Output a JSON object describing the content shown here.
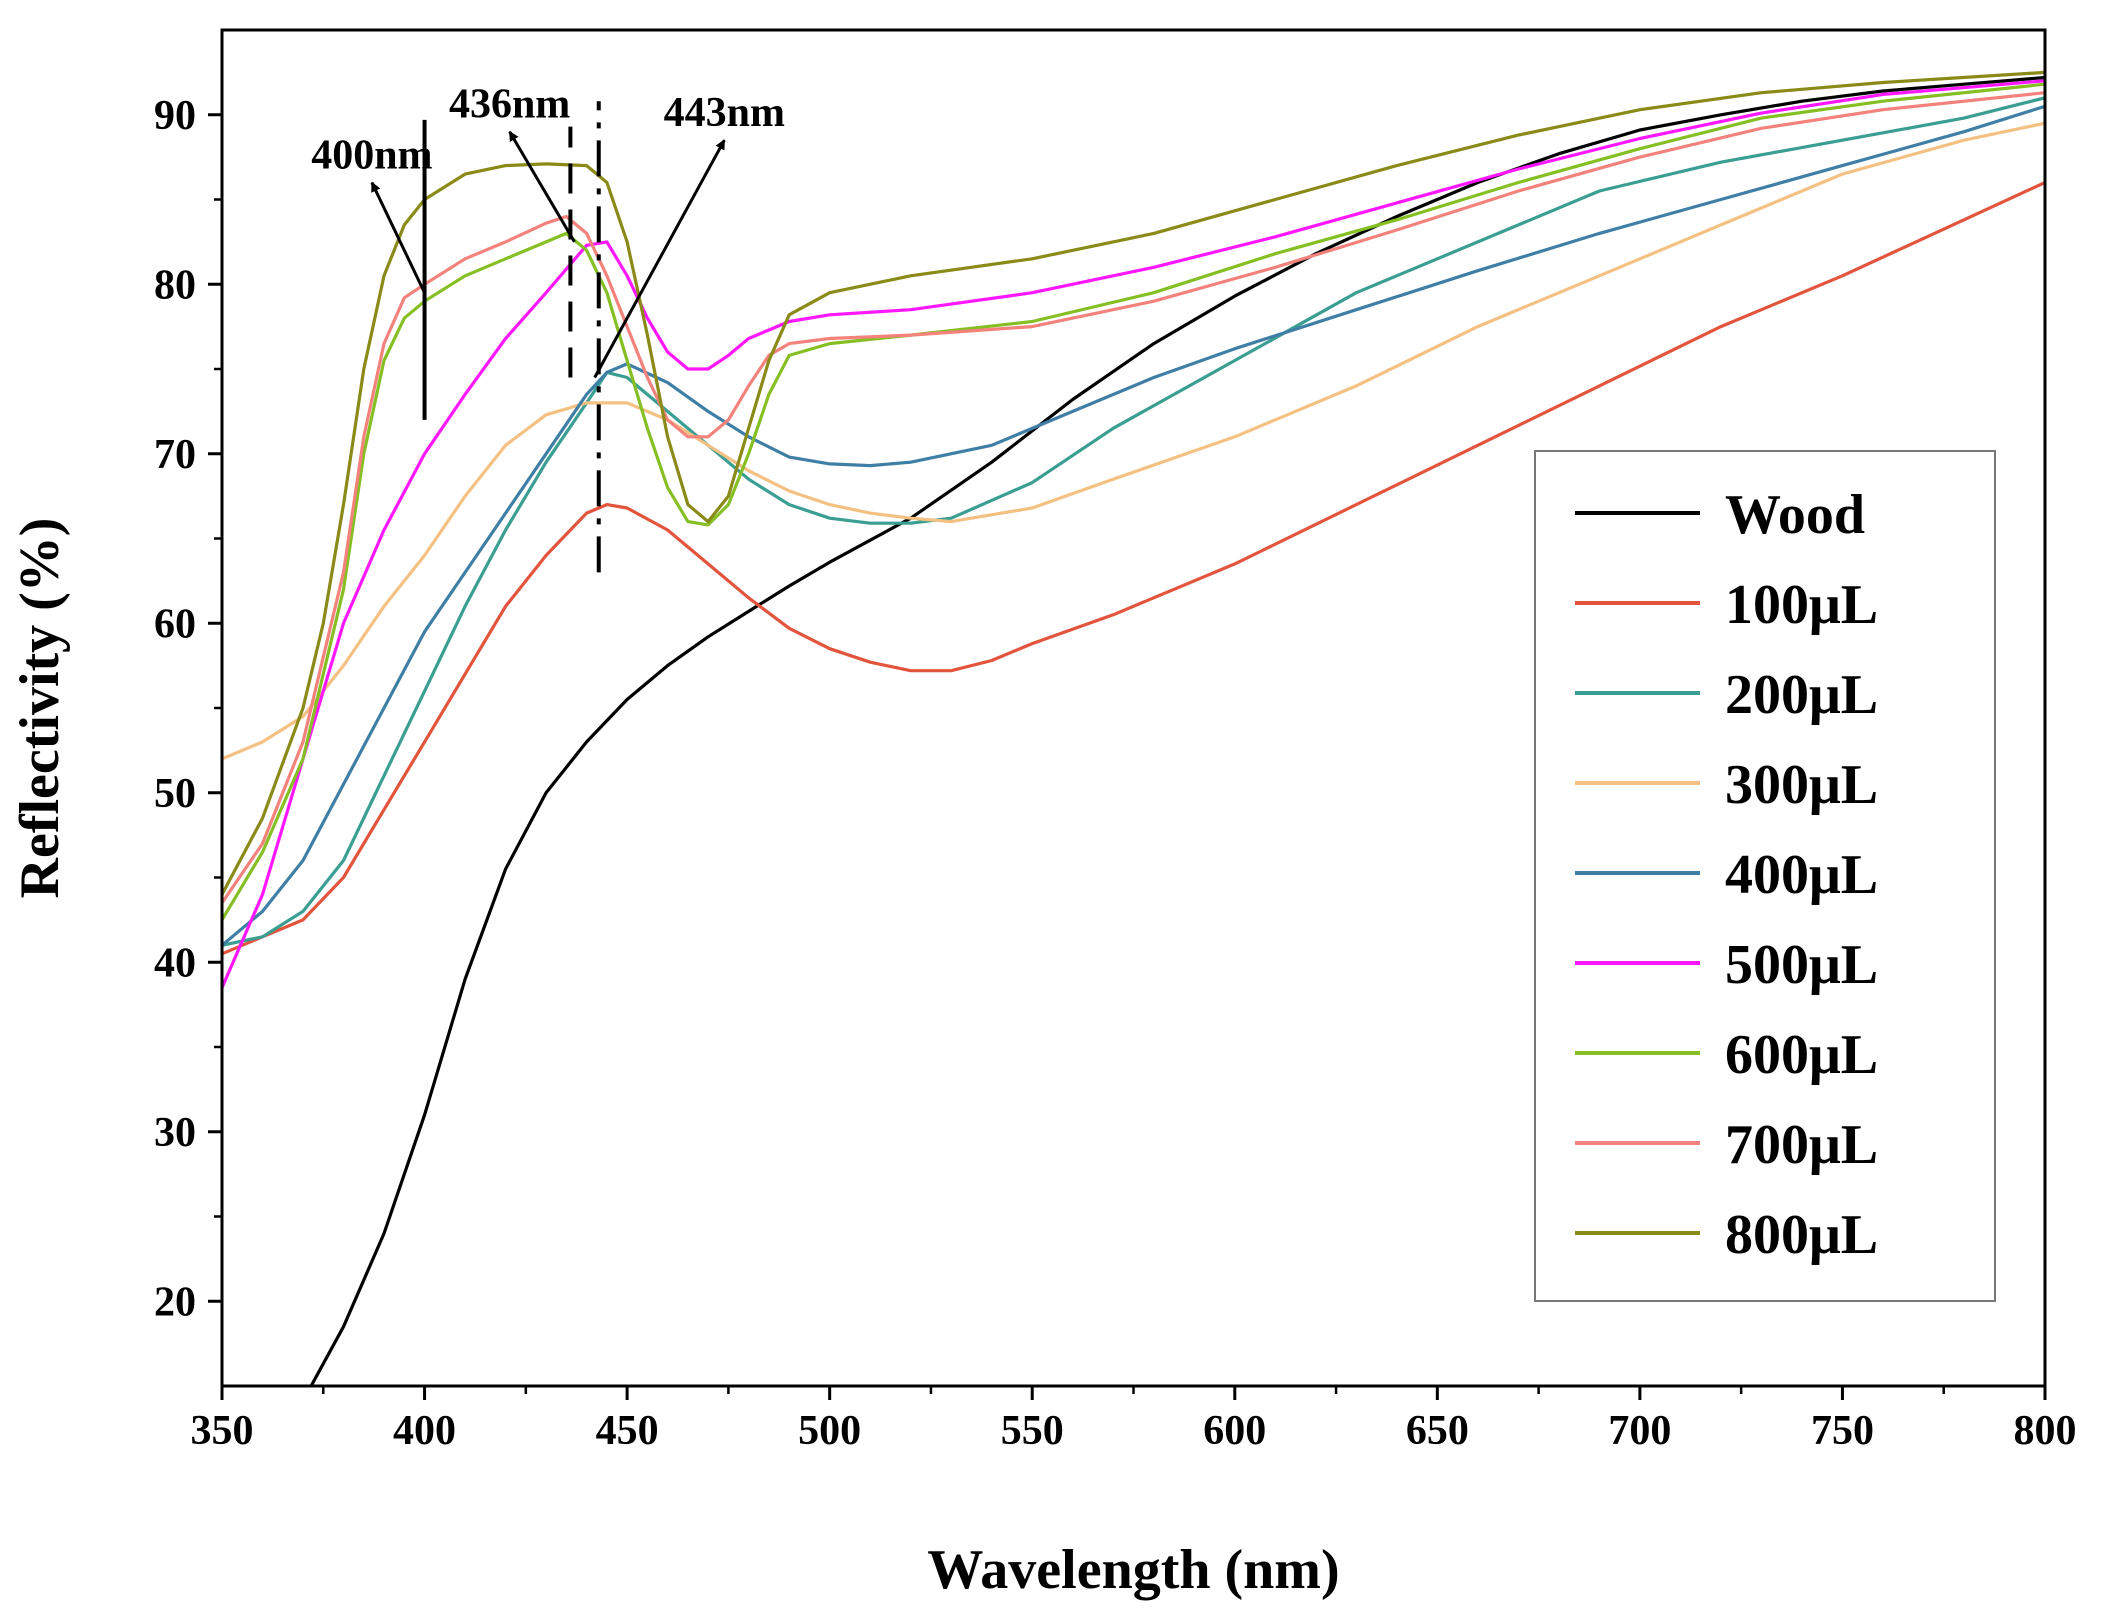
{
  "chart_data": {
    "type": "line",
    "xlabel": "Wavelength (nm)",
    "ylabel": "Reflectivity (%)",
    "xlim": [
      350,
      800
    ],
    "ylim": [
      15,
      95
    ],
    "x_ticks": [
      350,
      400,
      450,
      500,
      550,
      600,
      650,
      700,
      750,
      800
    ],
    "y_ticks": [
      20,
      30,
      40,
      50,
      60,
      70,
      80,
      90
    ],
    "grid": false,
    "legend_position": "bottom-right",
    "series": [
      {
        "name": "Wood",
        "color": "#000000",
        "points": [
          [
            372,
            15
          ],
          [
            380,
            18.5
          ],
          [
            390,
            24
          ],
          [
            400,
            31
          ],
          [
            410,
            39
          ],
          [
            420,
            45.5
          ],
          [
            430,
            50
          ],
          [
            440,
            53
          ],
          [
            450,
            55.5
          ],
          [
            460,
            57.5
          ],
          [
            470,
            59.2
          ],
          [
            480,
            60.7
          ],
          [
            490,
            62.2
          ],
          [
            500,
            63.6
          ],
          [
            520,
            66.2
          ],
          [
            540,
            69.5
          ],
          [
            560,
            73.2
          ],
          [
            580,
            76.5
          ],
          [
            600,
            79.3
          ],
          [
            620,
            81.8
          ],
          [
            640,
            84
          ],
          [
            660,
            86
          ],
          [
            680,
            87.7
          ],
          [
            700,
            89.1
          ],
          [
            720,
            90
          ],
          [
            740,
            90.8
          ],
          [
            760,
            91.4
          ],
          [
            780,
            91.8
          ],
          [
            800,
            92.2
          ]
        ]
      },
      {
        "name": "100μL",
        "color": "#e2543c",
        "points": [
          [
            350,
            40.5
          ],
          [
            360,
            41.5
          ],
          [
            370,
            42.5
          ],
          [
            380,
            45
          ],
          [
            390,
            49
          ],
          [
            400,
            53
          ],
          [
            410,
            57
          ],
          [
            420,
            61
          ],
          [
            430,
            64
          ],
          [
            440,
            66.5
          ],
          [
            445,
            67
          ],
          [
            450,
            66.8
          ],
          [
            460,
            65.5
          ],
          [
            470,
            63.5
          ],
          [
            480,
            61.5
          ],
          [
            490,
            59.7
          ],
          [
            500,
            58.5
          ],
          [
            510,
            57.7
          ],
          [
            520,
            57.2
          ],
          [
            530,
            57.2
          ],
          [
            540,
            57.8
          ],
          [
            550,
            58.8
          ],
          [
            570,
            60.5
          ],
          [
            600,
            63.5
          ],
          [
            630,
            67
          ],
          [
            660,
            70.5
          ],
          [
            690,
            74
          ],
          [
            720,
            77.5
          ],
          [
            750,
            80.5
          ],
          [
            780,
            83.8
          ],
          [
            800,
            86
          ]
        ]
      },
      {
        "name": "200μL",
        "color": "#3a9e92",
        "points": [
          [
            350,
            41
          ],
          [
            360,
            41.5
          ],
          [
            370,
            43
          ],
          [
            380,
            46
          ],
          [
            390,
            51
          ],
          [
            400,
            56
          ],
          [
            410,
            61
          ],
          [
            420,
            65.5
          ],
          [
            430,
            69.5
          ],
          [
            440,
            73
          ],
          [
            445,
            74.8
          ],
          [
            450,
            74.5
          ],
          [
            460,
            72.5
          ],
          [
            470,
            70.5
          ],
          [
            480,
            68.5
          ],
          [
            490,
            67
          ],
          [
            500,
            66.2
          ],
          [
            510,
            65.9
          ],
          [
            520,
            65.9
          ],
          [
            530,
            66.2
          ],
          [
            550,
            68.3
          ],
          [
            570,
            71.5
          ],
          [
            600,
            75.5
          ],
          [
            630,
            79.5
          ],
          [
            660,
            82.5
          ],
          [
            690,
            85.5
          ],
          [
            720,
            87.2
          ],
          [
            750,
            88.5
          ],
          [
            780,
            89.8
          ],
          [
            800,
            91
          ]
        ]
      },
      {
        "name": "300μL",
        "color": "#f4c183",
        "points": [
          [
            350,
            52
          ],
          [
            360,
            53
          ],
          [
            370,
            54.5
          ],
          [
            380,
            57.5
          ],
          [
            390,
            61
          ],
          [
            400,
            64
          ],
          [
            410,
            67.5
          ],
          [
            420,
            70.5
          ],
          [
            430,
            72.3
          ],
          [
            440,
            73
          ],
          [
            450,
            73
          ],
          [
            460,
            72
          ],
          [
            470,
            70.5
          ],
          [
            480,
            69
          ],
          [
            490,
            67.8
          ],
          [
            500,
            67
          ],
          [
            510,
            66.5
          ],
          [
            520,
            66.2
          ],
          [
            530,
            66
          ],
          [
            550,
            66.8
          ],
          [
            570,
            68.5
          ],
          [
            600,
            71
          ],
          [
            630,
            74
          ],
          [
            660,
            77.5
          ],
          [
            690,
            80.5
          ],
          [
            720,
            83.5
          ],
          [
            750,
            86.5
          ],
          [
            780,
            88.5
          ],
          [
            800,
            89.5
          ]
        ]
      },
      {
        "name": "400μL",
        "color": "#3f7fa6",
        "points": [
          [
            350,
            41
          ],
          [
            360,
            43
          ],
          [
            370,
            46
          ],
          [
            380,
            50.5
          ],
          [
            390,
            55
          ],
          [
            400,
            59.5
          ],
          [
            410,
            63
          ],
          [
            420,
            66.5
          ],
          [
            430,
            70
          ],
          [
            440,
            73.5
          ],
          [
            445,
            74.8
          ],
          [
            450,
            75.3
          ],
          [
            460,
            74.2
          ],
          [
            470,
            72.5
          ],
          [
            480,
            71
          ],
          [
            490,
            69.8
          ],
          [
            500,
            69.4
          ],
          [
            510,
            69.3
          ],
          [
            520,
            69.5
          ],
          [
            540,
            70.5
          ],
          [
            560,
            72.5
          ],
          [
            580,
            74.5
          ],
          [
            600,
            76.2
          ],
          [
            630,
            78.5
          ],
          [
            660,
            80.8
          ],
          [
            690,
            83
          ],
          [
            720,
            85
          ],
          [
            750,
            87
          ],
          [
            780,
            89
          ],
          [
            800,
            90.5
          ]
        ]
      },
      {
        "name": "500μL",
        "color": "#ff17ff",
        "points": [
          [
            350,
            38.5
          ],
          [
            360,
            44
          ],
          [
            370,
            52
          ],
          [
            380,
            60
          ],
          [
            390,
            65.5
          ],
          [
            400,
            70
          ],
          [
            410,
            73.5
          ],
          [
            420,
            76.8
          ],
          [
            430,
            79.5
          ],
          [
            440,
            82.3
          ],
          [
            445,
            82.5
          ],
          [
            450,
            80.5
          ],
          [
            455,
            78
          ],
          [
            460,
            76
          ],
          [
            465,
            75
          ],
          [
            470,
            75
          ],
          [
            475,
            75.8
          ],
          [
            480,
            76.8
          ],
          [
            490,
            77.8
          ],
          [
            500,
            78.2
          ],
          [
            520,
            78.5
          ],
          [
            550,
            79.5
          ],
          [
            580,
            81
          ],
          [
            610,
            82.8
          ],
          [
            640,
            84.8
          ],
          [
            670,
            86.8
          ],
          [
            700,
            88.6
          ],
          [
            730,
            90.1
          ],
          [
            760,
            91.2
          ],
          [
            800,
            92
          ]
        ]
      },
      {
        "name": "600μL",
        "color": "#86bf24",
        "points": [
          [
            350,
            42.5
          ],
          [
            360,
            46.5
          ],
          [
            370,
            52
          ],
          [
            380,
            62
          ],
          [
            385,
            70
          ],
          [
            390,
            75.5
          ],
          [
            395,
            78
          ],
          [
            400,
            79
          ],
          [
            410,
            80.5
          ],
          [
            420,
            81.5
          ],
          [
            430,
            82.5
          ],
          [
            435,
            83
          ],
          [
            440,
            82
          ],
          [
            445,
            79.5
          ],
          [
            450,
            75.5
          ],
          [
            455,
            71.5
          ],
          [
            460,
            68
          ],
          [
            465,
            66
          ],
          [
            470,
            65.8
          ],
          [
            475,
            67
          ],
          [
            480,
            70
          ],
          [
            485,
            73.5
          ],
          [
            490,
            75.8
          ],
          [
            500,
            76.5
          ],
          [
            520,
            77
          ],
          [
            550,
            77.8
          ],
          [
            580,
            79.5
          ],
          [
            610,
            81.8
          ],
          [
            640,
            83.8
          ],
          [
            670,
            86
          ],
          [
            700,
            88
          ],
          [
            730,
            89.8
          ],
          [
            760,
            90.8
          ],
          [
            800,
            91.8
          ]
        ]
      },
      {
        "name": "700μL",
        "color": "#f4827c",
        "points": [
          [
            350,
            43.5
          ],
          [
            360,
            47
          ],
          [
            370,
            53
          ],
          [
            380,
            63
          ],
          [
            385,
            71
          ],
          [
            390,
            76.5
          ],
          [
            395,
            79.2
          ],
          [
            400,
            80
          ],
          [
            410,
            81.5
          ],
          [
            420,
            82.5
          ],
          [
            430,
            83.6
          ],
          [
            435,
            84
          ],
          [
            440,
            83
          ],
          [
            445,
            80.5
          ],
          [
            450,
            77.5
          ],
          [
            455,
            74.5
          ],
          [
            460,
            72
          ],
          [
            465,
            71
          ],
          [
            470,
            71
          ],
          [
            475,
            72
          ],
          [
            480,
            74
          ],
          [
            485,
            75.8
          ],
          [
            490,
            76.5
          ],
          [
            500,
            76.8
          ],
          [
            520,
            77
          ],
          [
            550,
            77.5
          ],
          [
            580,
            79
          ],
          [
            610,
            81
          ],
          [
            640,
            83.2
          ],
          [
            670,
            85.5
          ],
          [
            700,
            87.5
          ],
          [
            730,
            89.2
          ],
          [
            760,
            90.3
          ],
          [
            800,
            91.3
          ]
        ]
      },
      {
        "name": "800μL",
        "color": "#8a8a18",
        "points": [
          [
            350,
            44
          ],
          [
            360,
            48.5
          ],
          [
            370,
            55
          ],
          [
            375,
            60
          ],
          [
            380,
            67
          ],
          [
            385,
            75
          ],
          [
            390,
            80.5
          ],
          [
            395,
            83.5
          ],
          [
            400,
            85
          ],
          [
            410,
            86.5
          ],
          [
            420,
            87
          ],
          [
            430,
            87.1
          ],
          [
            440,
            87
          ],
          [
            445,
            86
          ],
          [
            450,
            82.5
          ],
          [
            455,
            77
          ],
          [
            460,
            71
          ],
          [
            465,
            67
          ],
          [
            470,
            66
          ],
          [
            475,
            67.5
          ],
          [
            480,
            71.5
          ],
          [
            485,
            75.5
          ],
          [
            490,
            78.2
          ],
          [
            500,
            79.5
          ],
          [
            520,
            80.5
          ],
          [
            550,
            81.5
          ],
          [
            580,
            83
          ],
          [
            610,
            85
          ],
          [
            640,
            87
          ],
          [
            670,
            88.8
          ],
          [
            700,
            90.3
          ],
          [
            730,
            91.3
          ],
          [
            760,
            91.9
          ],
          [
            800,
            92.5
          ]
        ]
      }
    ],
    "reference_lines": [
      {
        "x": 400,
        "y_range": [
          72,
          89.7
        ],
        "style": "solid"
      },
      {
        "x": 436,
        "y_range": [
          74.5,
          89.3
        ],
        "style": "dashed"
      },
      {
        "x": 443,
        "y_range": [
          63,
          90.8
        ],
        "style": "dashdot"
      }
    ],
    "annotations": [
      {
        "text": "400nm",
        "arrow_from": [
          400,
          79.5
        ],
        "arrow_to": [
          387,
          86
        ]
      },
      {
        "text": "436nm",
        "arrow_from": [
          437,
          82.5
        ],
        "arrow_to": [
          421,
          89
        ]
      },
      {
        "text": "443nm",
        "arrow_from": [
          442,
          74.5
        ],
        "arrow_to": [
          474,
          88.5
        ]
      }
    ]
  }
}
